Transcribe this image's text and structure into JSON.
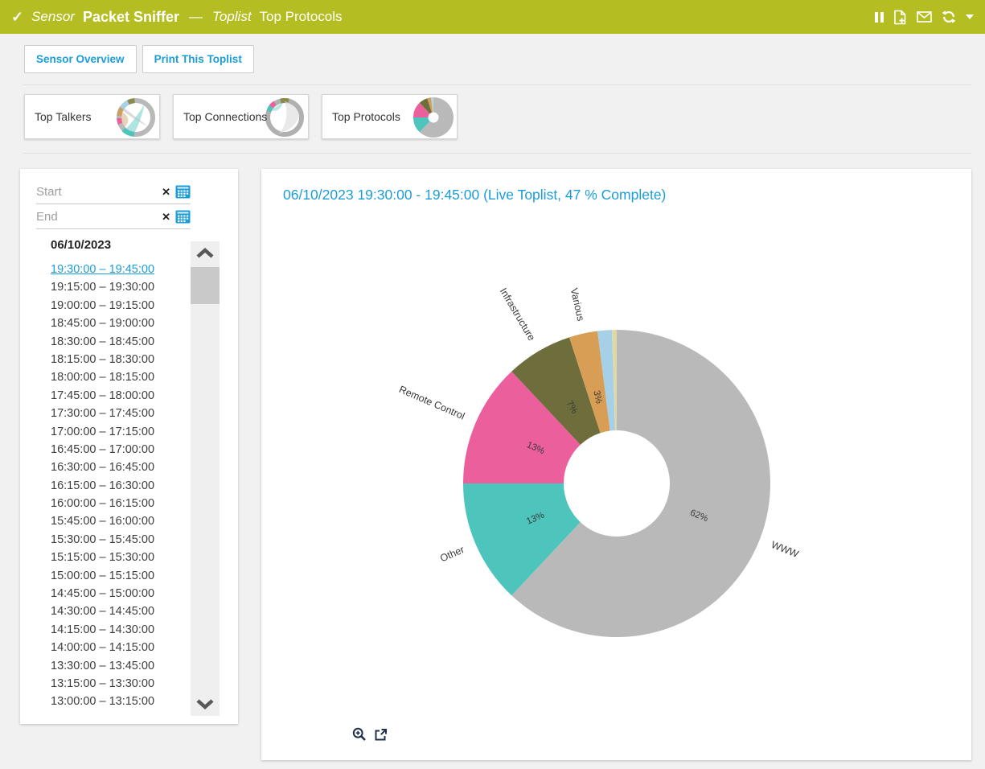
{
  "colors": {
    "header_bg": "#b4bd22",
    "accent_blue": "#1b9dd9",
    "page_bg": "#f1f1f1"
  },
  "icons": {
    "check": "✓",
    "clear": "✕"
  },
  "header": {
    "item_type": "Sensor",
    "item_name": "Packet Sniffer",
    "dash": "—",
    "subpage_type": "Toplist",
    "subpage_name": "Top Protocols"
  },
  "toolbar": {
    "sensor_overview_label": "Sensor Overview",
    "print_toplist_label": "Print This Toplist"
  },
  "toplist_cards": [
    {
      "label": "Top Talkers"
    },
    {
      "label": "Top Connections"
    },
    {
      "label": "Top Protocols"
    }
  ],
  "datepicker": {
    "start_placeholder": "Start",
    "end_placeholder": "End",
    "date_header": "06/10/2023",
    "selected_index": 0,
    "intervals": [
      "19:30:00 – 19:45:00",
      "19:15:00 – 19:30:00",
      "19:00:00 – 19:15:00",
      "18:45:00 – 19:00:00",
      "18:30:00 – 18:45:00",
      "18:15:00 – 18:30:00",
      "18:00:00 – 18:15:00",
      "17:45:00 – 18:00:00",
      "17:30:00 – 17:45:00",
      "17:00:00 – 17:15:00",
      "16:45:00 – 17:00:00",
      "16:30:00 – 16:45:00",
      "16:15:00 – 16:30:00",
      "16:00:00 – 16:15:00",
      "15:45:00 – 16:00:00",
      "15:30:00 – 15:45:00",
      "15:15:00 – 15:30:00",
      "15:00:00 – 15:15:00",
      "14:45:00 – 15:00:00",
      "14:30:00 – 14:45:00",
      "14:15:00 – 14:30:00",
      "14:00:00 – 14:15:00",
      "13:30:00 – 13:45:00",
      "13:15:00 – 13:30:00",
      "13:00:00 – 13:15:00"
    ]
  },
  "chart_panel": {
    "title": "06/10/2023 19:30:00 - 19:45:00 (Live Toplist, 47 % Complete)"
  },
  "chart_data": {
    "type": "pie",
    "title": "06/10/2023 19:30:00 - 19:45:00 (Live Toplist, 47 % Complete)",
    "donut": true,
    "start_angle": "top",
    "direction": "clockwise",
    "slices": [
      {
        "label": "WWW",
        "percent": 62,
        "color": "#b9b9b9"
      },
      {
        "label": "Other",
        "percent": 13,
        "color": "#4ec5bc"
      },
      {
        "label": "Remote Control",
        "percent": 13,
        "color": "#ec5f9d"
      },
      {
        "label": "Infrastructure",
        "percent": 7,
        "color": "#6e6d3c"
      },
      {
        "label": "Various",
        "percent": 3,
        "color": "#d89e55"
      },
      {
        "label": "",
        "percent": 1.5,
        "color": "#a6d0e8"
      },
      {
        "label": "",
        "percent": 0.5,
        "color": "#dfdaa5"
      }
    ]
  }
}
